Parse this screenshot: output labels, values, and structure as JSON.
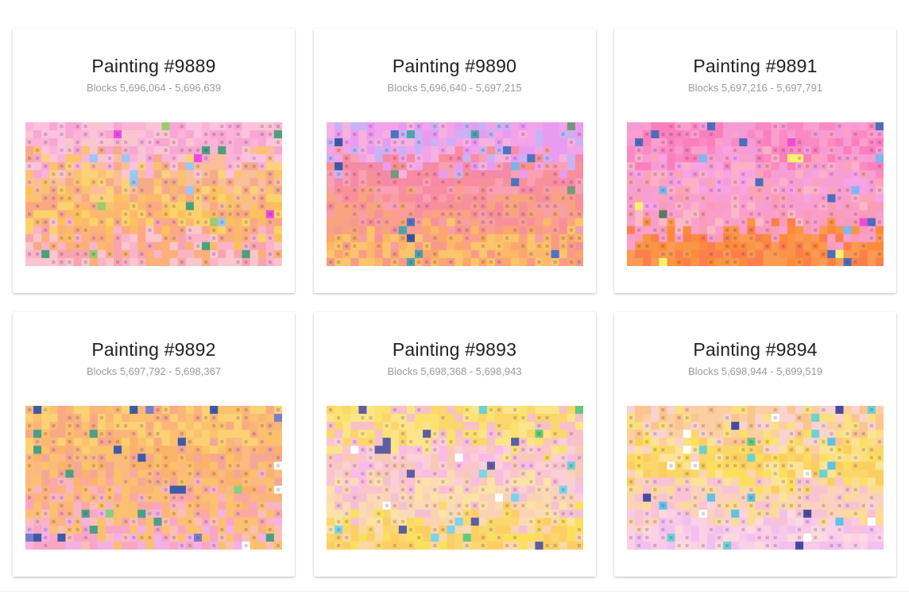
{
  "paintings": [
    {
      "title": "Painting #9889",
      "blocks": "Blocks 5,696,064 - 5,696,639",
      "palette": {
        "bands": [
          [
            "#fbb3d7",
            "#f8a6d3",
            "#fcc2df",
            "#f9c6cf"
          ],
          [
            "#fbbe9a",
            "#fbc26f",
            "#fbd27a",
            "#f6ab8b"
          ],
          [
            "#fcb96d",
            "#fbc25a",
            "#fbd36a",
            "#fba884"
          ],
          [
            "#f8a4ad",
            "#fbb3c8",
            "#fcb07a",
            "#f9c6cf"
          ]
        ],
        "accents": [
          "#4aa07a",
          "#9acb6e",
          "#ed49e8",
          "#9ec5f5",
          "#b4a0c8"
        ]
      }
    },
    {
      "title": "Painting #9890",
      "blocks": "Blocks 5,696,640 - 5,697,215",
      "palette": {
        "bands": [
          [
            "#f3a3e9",
            "#e99bf1",
            "#f7b1e0",
            "#c9b2f4"
          ],
          [
            "#fb8aa3",
            "#f79197",
            "#fb9fb3",
            "#f58aa8"
          ],
          [
            "#fb9e8f",
            "#f89ea4",
            "#f8a47e",
            "#f7909a"
          ],
          [
            "#fba66c",
            "#fbb86a",
            "#f89a89",
            "#fbc56b"
          ]
        ],
        "accents": [
          "#4e72c2",
          "#3d57a4",
          "#4aa3ad",
          "#7ab3ee",
          "#79967b"
        ]
      }
    },
    {
      "title": "Painting #9891",
      "blocks": "Blocks 5,697,216 - 5,697,791",
      "palette": {
        "bands": [
          [
            "#fb89c3",
            "#fa7fbd",
            "#fc9fcc",
            "#f59bd6"
          ],
          [
            "#fba4b8",
            "#f8a2e8",
            "#f69fd5",
            "#fcb1c8"
          ],
          [
            "#fb9fce",
            "#f99ec9",
            "#fbb9c8",
            "#f89cb8"
          ],
          [
            "#fb8b3a",
            "#f99545",
            "#fb7f4c",
            "#fb9a52"
          ]
        ],
        "accents": [
          "#597a60",
          "#ef4bd4",
          "#fbf06e",
          "#4a6dbd",
          "#7fb6f4"
        ]
      }
    },
    {
      "title": "Painting #9892",
      "blocks": "Blocks 5,697,792 - 5,698,367",
      "palette": {
        "bands": [
          [
            "#fbb57a",
            "#fcc06f",
            "#f9aa84",
            "#fbd174"
          ],
          [
            "#fbb26b",
            "#fcc26a",
            "#fbba80",
            "#f5a797"
          ],
          [
            "#fbb47a",
            "#fcc170",
            "#fba8a5",
            "#f9b4c3"
          ],
          [
            "#f9a6c6",
            "#fcbfb6",
            "#f3b1e6",
            "#fcc072"
          ]
        ],
        "accents": [
          "#4a9f86",
          "#8bcd7c",
          "#3d5aa6",
          "#7a7dc8",
          "#ffffff"
        ]
      }
    },
    {
      "title": "Painting #9893",
      "blocks": "Blocks 5,698,368 - 5,698,943",
      "palette": {
        "bands": [
          [
            "#fbe170",
            "#fbd66b",
            "#fce48a",
            "#f8c0ca"
          ],
          [
            "#fbc4cf",
            "#fbcfd8",
            "#f9bbe8",
            "#f9c9b5"
          ],
          [
            "#fbd2b6",
            "#fbdab7",
            "#f6c0d3",
            "#fbe3a5"
          ],
          [
            "#fbd86d",
            "#fbe05d",
            "#fbcf65",
            "#fbd8a6"
          ]
        ],
        "accents": [
          "#6fd0cf",
          "#62c97e",
          "#7dd2ee",
          "#5c5ea4",
          "#ffffff"
        ]
      }
    },
    {
      "title": "Painting #9894",
      "blocks": "Blocks 5,698,944 - 5,699,519",
      "palette": {
        "bands": [
          [
            "#fbcfa2",
            "#fac58f",
            "#f9d3d0",
            "#fbe081"
          ],
          [
            "#fbd769",
            "#fcdf5c",
            "#fbce61",
            "#fbe49a"
          ],
          [
            "#fbd0c0",
            "#f9c2d6",
            "#fbdc94",
            "#fbd4b5"
          ],
          [
            "#f9c9ea",
            "#fbd1e6",
            "#f3bff0",
            "#fcdadd"
          ]
        ],
        "accents": [
          "#5fc2e6",
          "#6ed1d0",
          "#464ba2",
          "#66c979",
          "#ffffff"
        ]
      }
    }
  ]
}
